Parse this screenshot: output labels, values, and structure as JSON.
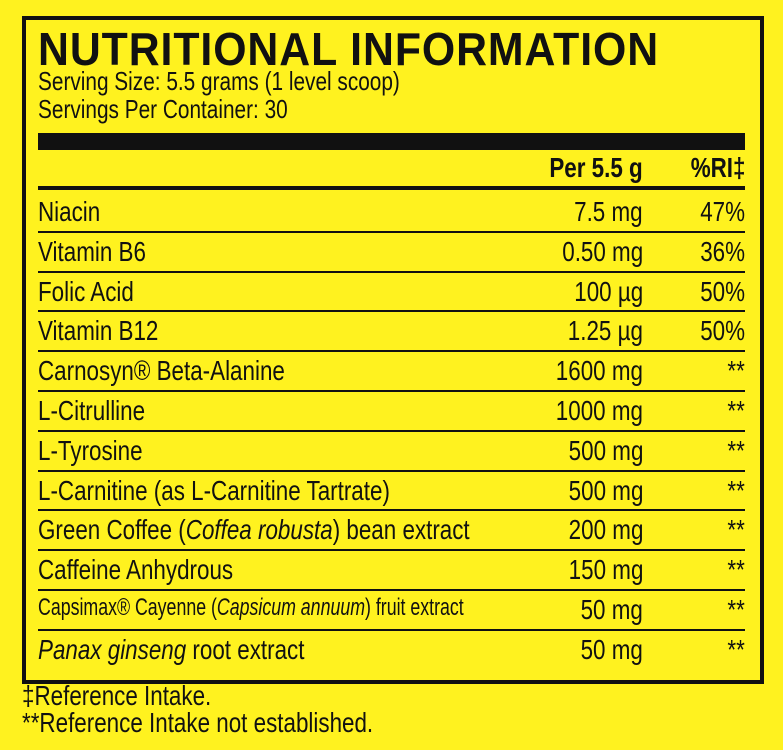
{
  "header": {
    "title": "NUTRITIONAL INFORMATION",
    "serving_size": "Serving Size: 5.5 grams (1 level scoop)",
    "servings_per_container": "Servings Per Container: 30"
  },
  "table": {
    "columns": [
      "Per 5.5 g",
      "%RI‡"
    ],
    "rows": [
      {
        "name": [
          {
            "text": "Niacin"
          }
        ],
        "amount": "7.5 mg",
        "ri": "47%"
      },
      {
        "name": [
          {
            "text": "Vitamin B6"
          }
        ],
        "amount": "0.50 mg",
        "ri": "36%"
      },
      {
        "name": [
          {
            "text": "Folic Acid"
          }
        ],
        "amount": "100 µg",
        "ri": "50%"
      },
      {
        "name": [
          {
            "text": "Vitamin B12"
          }
        ],
        "amount": "1.25 µg",
        "ri": "50%"
      },
      {
        "name": [
          {
            "text": "Carnosyn® Beta-Alanine"
          }
        ],
        "amount": "1600 mg",
        "ri": "**"
      },
      {
        "name": [
          {
            "text": "L-Citrulline"
          }
        ],
        "amount": "1000 mg",
        "ri": "**"
      },
      {
        "name": [
          {
            "text": "L-Tyrosine"
          }
        ],
        "amount": "500 mg",
        "ri": "**"
      },
      {
        "name": [
          {
            "text": "L-Carnitine (as L-Carnitine Tartrate)"
          }
        ],
        "amount": "500 mg",
        "ri": "**"
      },
      {
        "name": [
          {
            "text": "Green Coffee ("
          },
          {
            "text": "Coffea robusta",
            "italic": true
          },
          {
            "text": ") bean extract"
          }
        ],
        "amount": "200 mg",
        "ri": "**"
      },
      {
        "name": [
          {
            "text": "Caffeine Anhydrous"
          }
        ],
        "amount": "150 mg",
        "ri": "**"
      },
      {
        "name": [
          {
            "text": "Capsimax® Cayenne ("
          },
          {
            "text": "Capsicum annuum",
            "italic": true
          },
          {
            "text": ") fruit extract"
          }
        ],
        "amount": "50 mg",
        "ri": "**",
        "small": true
      },
      {
        "name": [
          {
            "text": "Panax ginseng",
            "italic": true
          },
          {
            "text": " root extract"
          }
        ],
        "amount": "50 mg",
        "ri": "**"
      }
    ]
  },
  "footnotes": [
    "‡Reference Intake.",
    "**Reference Intake not established."
  ]
}
